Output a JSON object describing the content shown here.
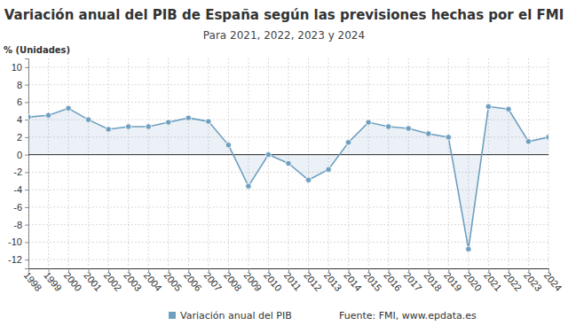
{
  "chart_data": {
    "type": "area",
    "title": "Variación anual del PIB de España según las previsiones hechas por el FMI",
    "subtitle": "Para 2021, 2022, 2023 y 2024",
    "y_label": "% (Unidades)",
    "source": "Fuente: FMI, www.epdata.es",
    "x": [
      1998,
      1999,
      2000,
      2001,
      2002,
      2003,
      2004,
      2005,
      2006,
      2007,
      2008,
      2009,
      2010,
      2011,
      2012,
      2013,
      2014,
      2015,
      2016,
      2017,
      2018,
      2019,
      2020,
      2021,
      2022,
      2023,
      2024
    ],
    "series": [
      {
        "name": "Variación anual del PIB",
        "color": "#6e9fc0",
        "values": [
          4.3,
          4.5,
          5.3,
          4.0,
          2.9,
          3.2,
          3.2,
          3.7,
          4.2,
          3.8,
          1.1,
          -3.6,
          0.0,
          -1.0,
          -2.9,
          -1.7,
          1.4,
          3.7,
          3.2,
          3.0,
          2.4,
          2.0,
          -10.8,
          5.5,
          5.2,
          1.5,
          2.0
        ]
      }
    ],
    "xlim": [
      1998,
      2024
    ],
    "xticks": [
      1998,
      1999,
      2000,
      2001,
      2002,
      2003,
      2004,
      2005,
      2006,
      2007,
      2008,
      2009,
      2010,
      2011,
      2012,
      2013,
      2014,
      2015,
      2016,
      2017,
      2018,
      2019,
      2020,
      2021,
      2022,
      2023,
      2024
    ],
    "ylim": [
      -13,
      11
    ],
    "yticks": [
      -12,
      -10,
      -8,
      -6,
      -4,
      -2,
      0,
      2,
      4,
      6,
      8,
      10
    ],
    "grid": true,
    "marker": "circle",
    "legend": "bottom"
  }
}
